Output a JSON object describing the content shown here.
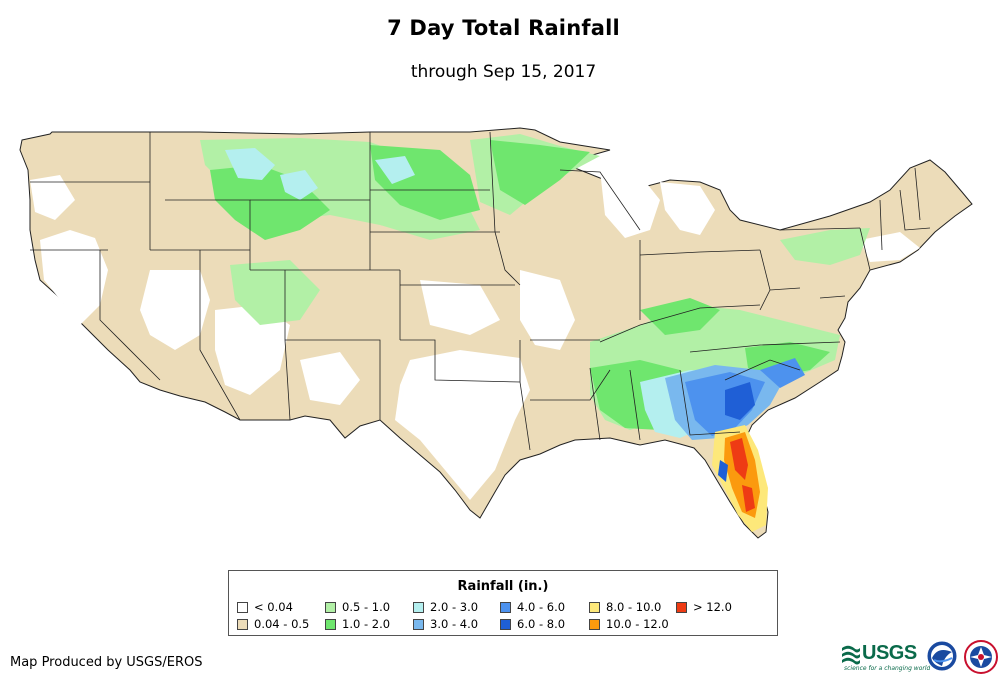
{
  "title": "7 Day Total Rainfall",
  "subtitle": "through Sep 15, 2017",
  "legend": {
    "title": "Rainfall (in.)",
    "items": [
      {
        "label": "< 0.04",
        "color": "#ffffff"
      },
      {
        "label": "0.04 - 0.5",
        "color": "#ecdcb9"
      },
      {
        "label": "0.5 - 1.0",
        "color": "#b2f0a6"
      },
      {
        "label": "1.0 - 2.0",
        "color": "#6fe66e"
      },
      {
        "label": "2.0 - 3.0",
        "color": "#b4efef"
      },
      {
        "label": "3.0 - 4.0",
        "color": "#79b8ee"
      },
      {
        "label": "4.0 - 6.0",
        "color": "#4d92ee"
      },
      {
        "label": "6.0 - 8.0",
        "color": "#1f5fd6"
      },
      {
        "label": "8.0 - 10.0",
        "color": "#fde87a"
      },
      {
        "label": "10.0 - 12.0",
        "color": "#fb9a0e"
      },
      {
        "label": "> 12.0",
        "color": "#ee3b14"
      }
    ]
  },
  "credit": "Map Produced by USGS/EROS",
  "logos": {
    "usgs": "USGS",
    "usgs_tagline": "science for a changing world",
    "noaa_icon": "noaa-logo-icon",
    "nws_icon": "nws-logo-icon"
  }
}
